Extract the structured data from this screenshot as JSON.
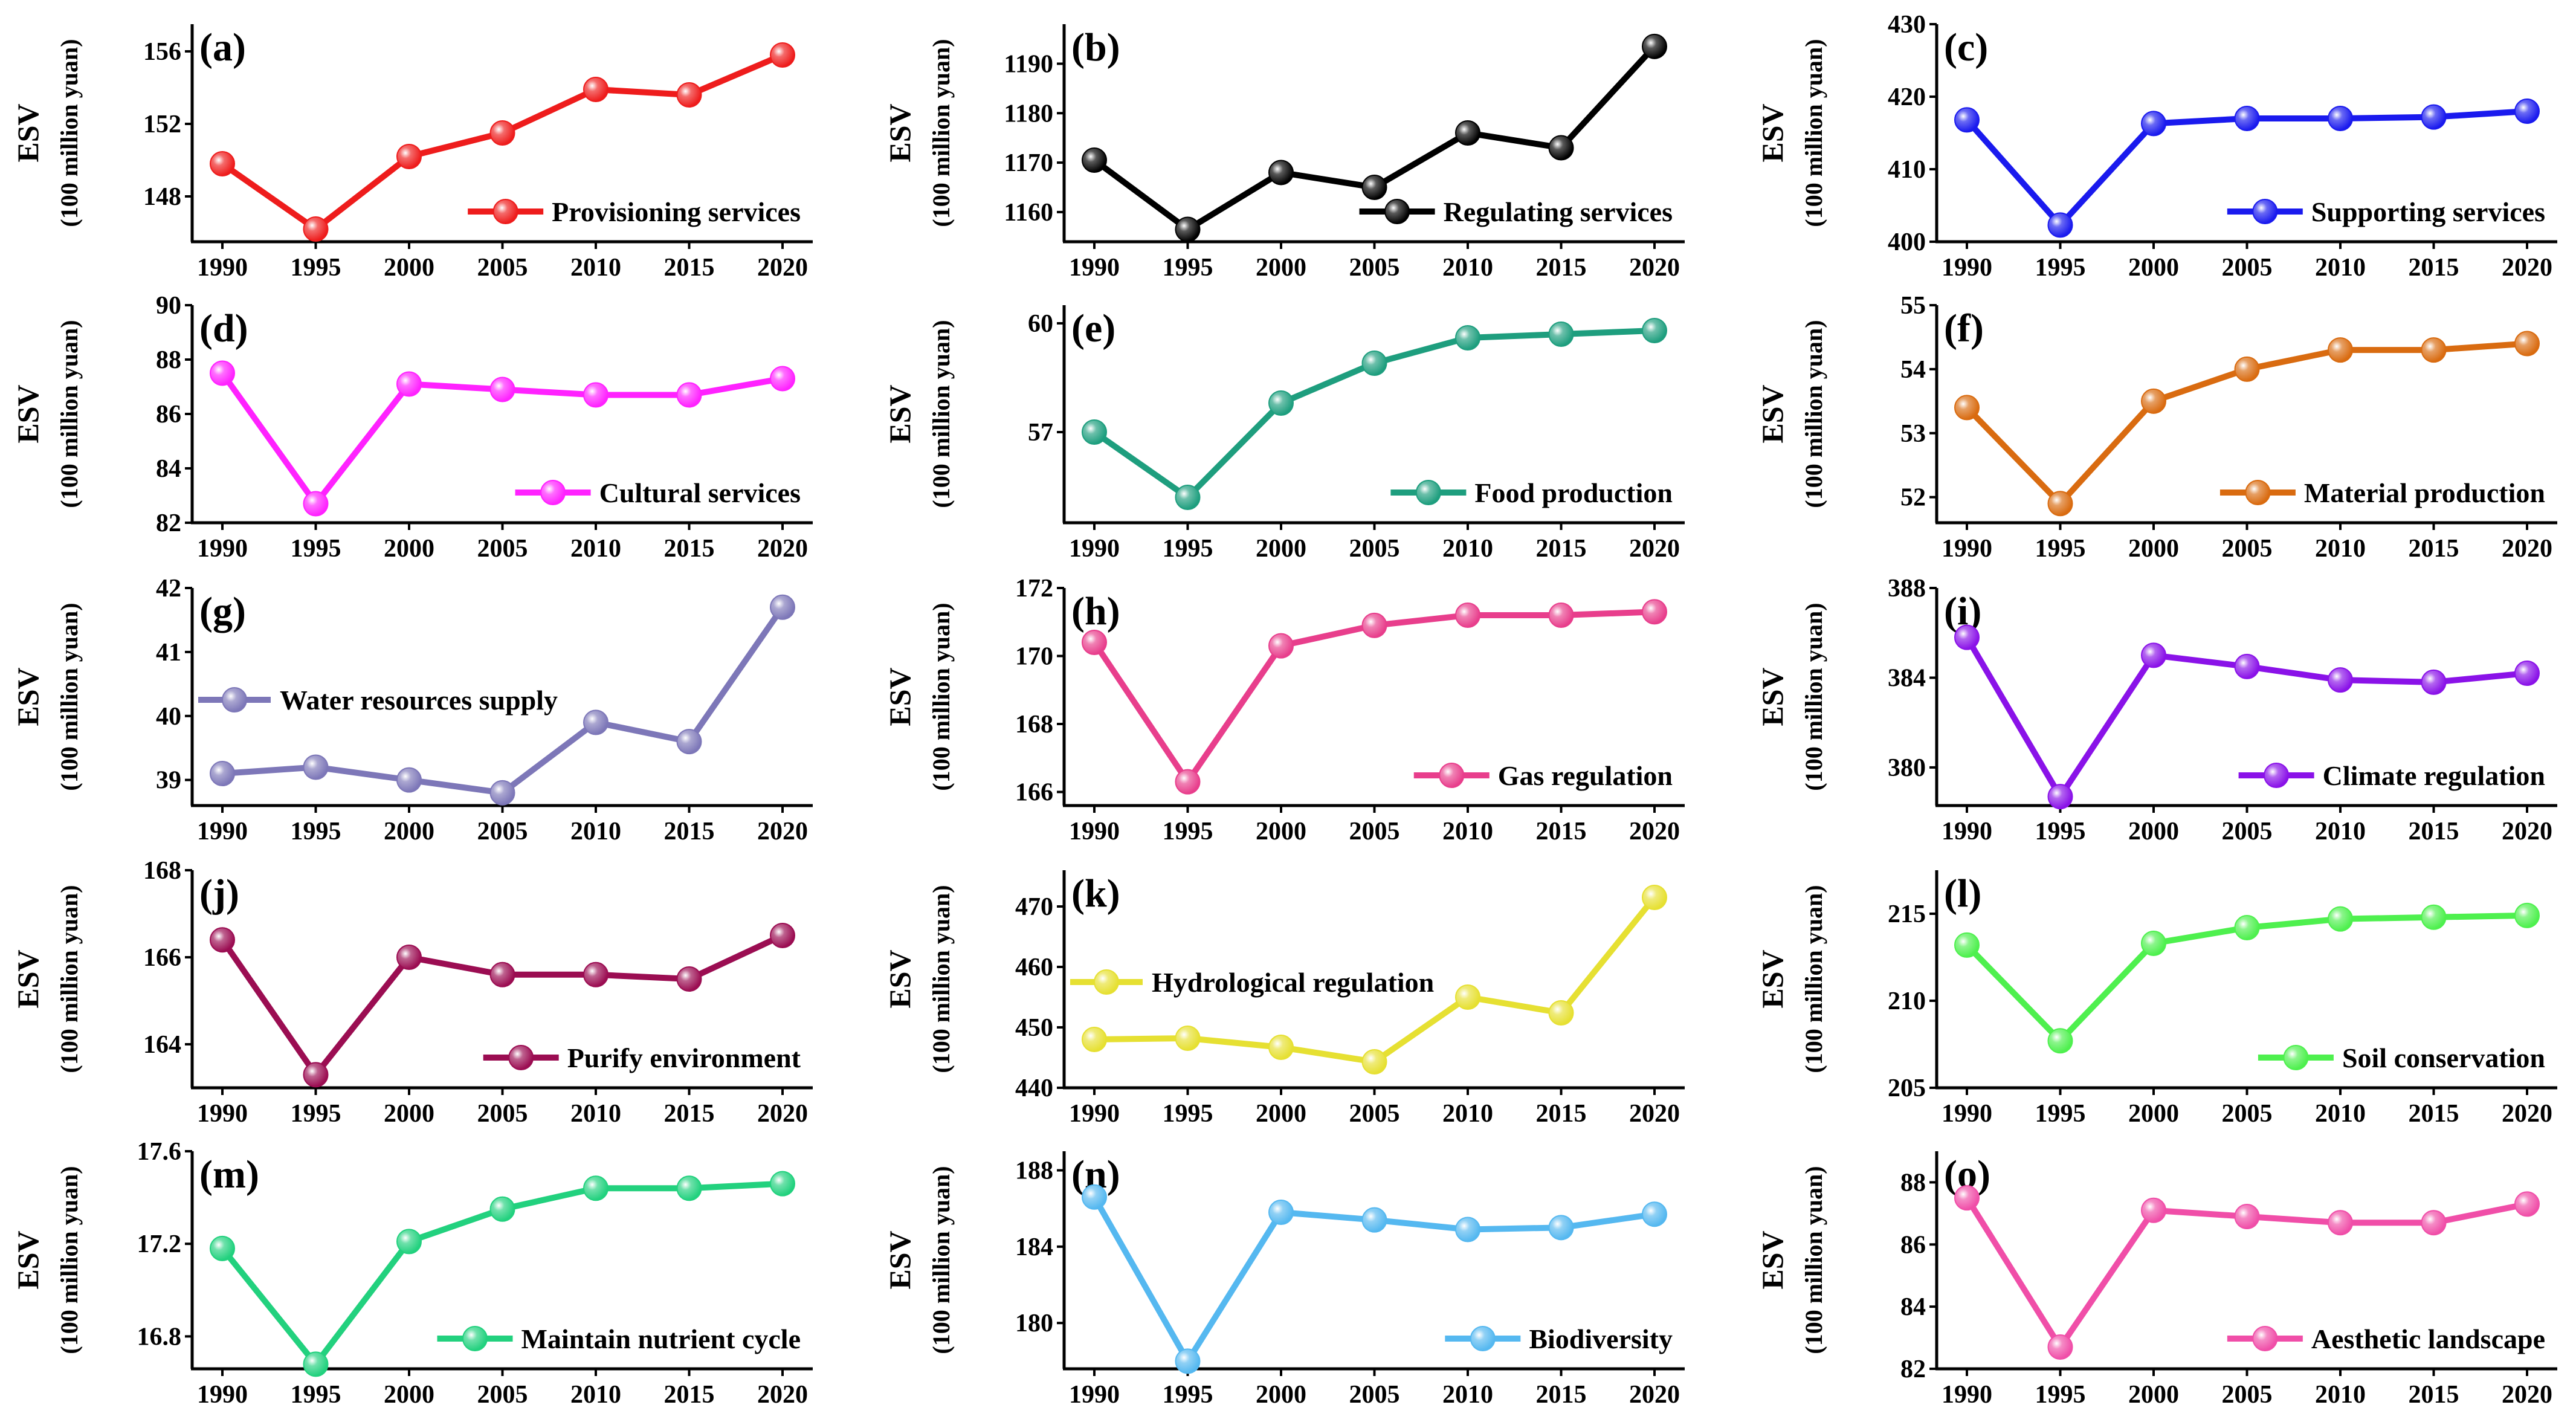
{
  "chart_data": [
    {
      "panel": "(a)",
      "type": "line",
      "series_name": "Provisioning services",
      "color": "#ee1c1c",
      "x": [
        "1990",
        "1995",
        "2000",
        "2005",
        "2010",
        "2015",
        "2020"
      ],
      "values": [
        149.8,
        146.2,
        150.2,
        151.5,
        153.9,
        153.6,
        155.8
      ],
      "ylim": [
        145.5,
        157.5
      ],
      "yticks": [
        "148",
        "152",
        "156"
      ],
      "ylabel": "ESV",
      "yunit": "(100 million yuan)",
      "legend": "bottom-right"
    },
    {
      "panel": "(b)",
      "type": "line",
      "series_name": "Regulating services",
      "color": "#000000",
      "x": [
        "1990",
        "1995",
        "2000",
        "2005",
        "2010",
        "2015",
        "2020"
      ],
      "values": [
        1170.5,
        1156.5,
        1168.0,
        1165.0,
        1176.0,
        1173.0,
        1193.5
      ],
      "ylim": [
        1154,
        1198
      ],
      "yticks": [
        "1160",
        "1170",
        "1180",
        "1190"
      ],
      "ylabel": "ESV",
      "yunit": "(100 million yuan)",
      "legend": "bottom-right"
    },
    {
      "panel": "(c)",
      "type": "line",
      "series_name": "Supporting services",
      "color": "#1a1aee",
      "x": [
        "1990",
        "1995",
        "2000",
        "2005",
        "2010",
        "2015",
        "2020"
      ],
      "values": [
        416.8,
        402.3,
        416.3,
        417.0,
        417.0,
        417.2,
        418.0
      ],
      "ylim": [
        400,
        430
      ],
      "yticks": [
        "400",
        "410",
        "420",
        "430"
      ],
      "ylabel": "ESV",
      "yunit": "(100 million yuan)",
      "legend": "bottom-right"
    },
    {
      "panel": "(d)",
      "type": "line",
      "series_name": "Cultural services",
      "color": "#ff22ff",
      "x": [
        "1990",
        "1995",
        "2000",
        "2005",
        "2010",
        "2015",
        "2020"
      ],
      "values": [
        87.5,
        82.7,
        87.1,
        86.9,
        86.7,
        86.7,
        87.3
      ],
      "ylim": [
        82,
        90
      ],
      "yticks": [
        "82",
        "84",
        "86",
        "88",
        "90"
      ],
      "ylabel": "ESV",
      "yunit": "(100 million yuan)",
      "legend": "bottom-right"
    },
    {
      "panel": "(e)",
      "type": "line",
      "series_name": "Food production",
      "color": "#1e9e7e",
      "x": [
        "1990",
        "1995",
        "2000",
        "2005",
        "2010",
        "2015",
        "2020"
      ],
      "values": [
        57.0,
        55.2,
        57.8,
        58.9,
        59.6,
        59.7,
        59.8
      ],
      "ylim": [
        54.5,
        60.5
      ],
      "yticks": [
        "57",
        "60"
      ],
      "ylabel": "ESV",
      "yunit": "(100 million yuan)",
      "legend": "bottom-right"
    },
    {
      "panel": "(f)",
      "type": "line",
      "series_name": "Material production",
      "color": "#d96b10",
      "x": [
        "1990",
        "1995",
        "2000",
        "2005",
        "2010",
        "2015",
        "2020"
      ],
      "values": [
        53.4,
        51.9,
        53.5,
        54.0,
        54.3,
        54.3,
        54.4
      ],
      "ylim": [
        51.6,
        55
      ],
      "yticks": [
        "52",
        "53",
        "54",
        "55"
      ],
      "ylabel": "ESV",
      "yunit": "(100 million yuan)",
      "legend": "bottom-right"
    },
    {
      "panel": "(g)",
      "type": "line",
      "series_name": "Water resources supply",
      "color": "#7d77b8",
      "x": [
        "1990",
        "1995",
        "2000",
        "2005",
        "2010",
        "2015",
        "2020"
      ],
      "values": [
        39.1,
        39.2,
        39.0,
        38.8,
        39.9,
        39.6,
        41.7
      ],
      "ylim": [
        38.6,
        42
      ],
      "yticks": [
        "39",
        "40",
        "41",
        "42"
      ],
      "ylabel": "ESV",
      "yunit": "(100 million yuan)",
      "legend": "top-left"
    },
    {
      "panel": "(h)",
      "type": "line",
      "series_name": "Gas regulation",
      "color": "#e83e8c",
      "x": [
        "1990",
        "1995",
        "2000",
        "2005",
        "2010",
        "2015",
        "2020"
      ],
      "values": [
        170.4,
        166.3,
        170.3,
        170.9,
        171.2,
        171.2,
        171.3
      ],
      "ylim": [
        165.6,
        172
      ],
      "yticks": [
        "166",
        "168",
        "170",
        "172"
      ],
      "ylabel": "ESV",
      "yunit": "(100 million yuan)",
      "legend": "bottom-right"
    },
    {
      "panel": "(i)",
      "type": "line",
      "series_name": "Climate regulation",
      "color": "#8a12e8",
      "x": [
        "1990",
        "1995",
        "2000",
        "2005",
        "2010",
        "2015",
        "2020"
      ],
      "values": [
        385.8,
        378.7,
        385.0,
        384.5,
        383.9,
        383.8,
        384.2
      ],
      "ylim": [
        378.3,
        388
      ],
      "yticks": [
        "380",
        "384",
        "388"
      ],
      "ylabel": "ESV",
      "yunit": "(100 million yuan)",
      "legend": "bottom-right"
    },
    {
      "panel": "(j)",
      "type": "line",
      "series_name": "Purify environment",
      "color": "#9b0d52",
      "x": [
        "1990",
        "1995",
        "2000",
        "2005",
        "2010",
        "2015",
        "2020"
      ],
      "values": [
        166.4,
        163.3,
        166.0,
        165.6,
        165.6,
        165.5,
        166.5
      ],
      "ylim": [
        163,
        168
      ],
      "yticks": [
        "164",
        "166",
        "168"
      ],
      "ylabel": "ESV",
      "yunit": "(100 million yuan)",
      "legend": "bottom-right"
    },
    {
      "panel": "(k)",
      "type": "line",
      "series_name": "Hydrological regulation",
      "color": "#e6e032",
      "x": [
        "1990",
        "1995",
        "2000",
        "2005",
        "2010",
        "2015",
        "2020"
      ],
      "values": [
        448.0,
        448.2,
        446.7,
        444.3,
        455.0,
        452.4,
        471.5
      ],
      "ylim": [
        440,
        476
      ],
      "yticks": [
        "440",
        "450",
        "460",
        "470"
      ],
      "ylabel": "ESV",
      "yunit": "(100 million yuan)",
      "legend": "top-left"
    },
    {
      "panel": "(l)",
      "type": "line",
      "series_name": "Soil conservation",
      "color": "#4ef04e",
      "x": [
        "1990",
        "1995",
        "2000",
        "2005",
        "2010",
        "2015",
        "2020"
      ],
      "values": [
        213.2,
        207.7,
        213.3,
        214.2,
        214.7,
        214.8,
        214.9
      ],
      "ylim": [
        205,
        217.5
      ],
      "yticks": [
        "205",
        "210",
        "215"
      ],
      "ylabel": "ESV",
      "yunit": "(100 million yuan)",
      "legend": "bottom-right"
    },
    {
      "panel": "(m)",
      "type": "line",
      "series_name": "Maintain nutrient cycle",
      "color": "#22d17e",
      "x": [
        "1990",
        "1995",
        "2000",
        "2005",
        "2010",
        "2015",
        "2020"
      ],
      "values": [
        17.18,
        16.68,
        17.21,
        17.35,
        17.44,
        17.44,
        17.46
      ],
      "ylim": [
        16.66,
        17.6
      ],
      "yticks": [
        "16.8",
        "17.2",
        "17.6"
      ],
      "ylabel": "ESV",
      "yunit": "(100 million yuan)",
      "legend": "bottom-right"
    },
    {
      "panel": "(n)",
      "type": "line",
      "series_name": "Biodiversity",
      "color": "#55b8f0",
      "x": [
        "1990",
        "1995",
        "2000",
        "2005",
        "2010",
        "2015",
        "2020"
      ],
      "values": [
        186.6,
        178.0,
        185.8,
        185.4,
        184.9,
        185.0,
        185.7
      ],
      "ylim": [
        177.6,
        189
      ],
      "yticks": [
        "180",
        "184",
        "188"
      ],
      "ylabel": "ESV",
      "yunit": "(100 million yuan)",
      "legend": "bottom-right"
    },
    {
      "panel": "(o)",
      "type": "line",
      "series_name": "Aesthetic landscape",
      "color": "#f04ea8",
      "x": [
        "1990",
        "1995",
        "2000",
        "2005",
        "2010",
        "2015",
        "2020"
      ],
      "values": [
        87.5,
        82.7,
        87.1,
        86.9,
        86.7,
        86.7,
        87.3
      ],
      "ylim": [
        82,
        89
      ],
      "yticks": [
        "82",
        "84",
        "86",
        "88"
      ],
      "ylabel": "ESV",
      "yunit": "(100 million yuan)",
      "legend": "bottom-right"
    }
  ]
}
